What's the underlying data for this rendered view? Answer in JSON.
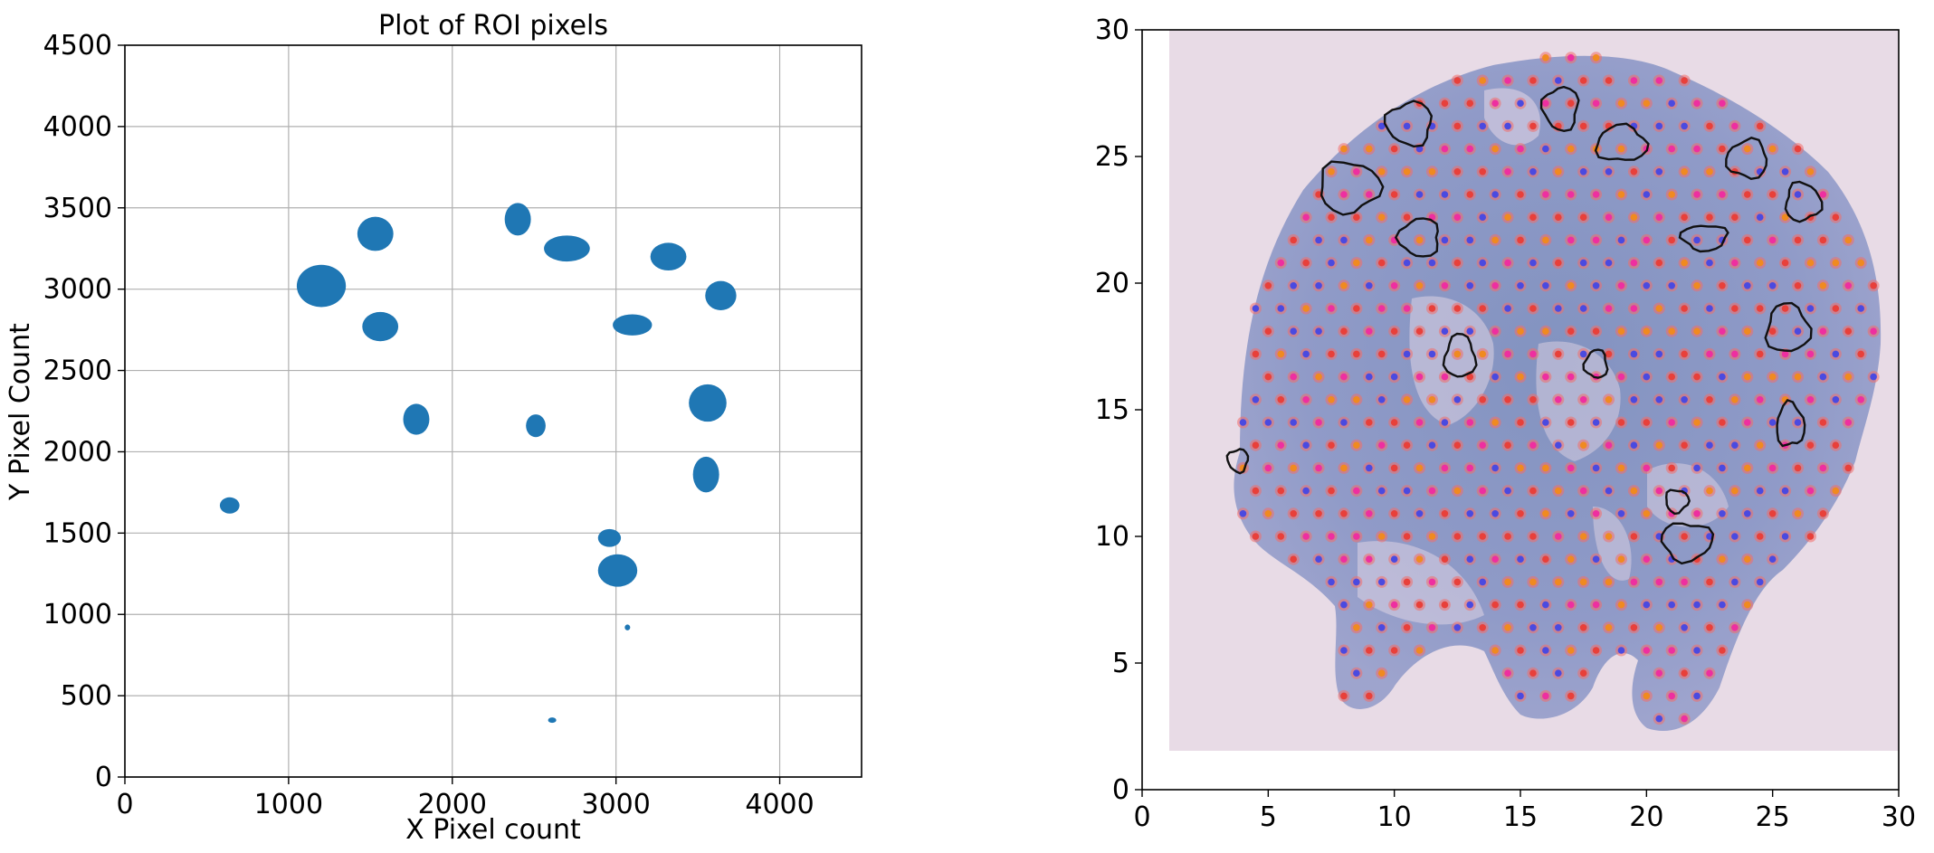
{
  "chart_data": [
    {
      "type": "scatter",
      "title": "Plot of ROI pixels",
      "xlabel": "X Pixel count",
      "ylabel": "Y Pixel Count",
      "xlim": [
        0,
        4500
      ],
      "ylim": [
        0,
        4500
      ],
      "xticks": [
        "0",
        "1000",
        "2000",
        "3000",
        "4000"
      ],
      "yticks": [
        "0",
        "500",
        "1000",
        "1500",
        "2000",
        "2500",
        "3000",
        "3500",
        "4000",
        "4500"
      ],
      "grid": true,
      "marker_color": "#1f77b4",
      "regions": [
        {
          "x": 1200,
          "y": 3020,
          "rx": 150,
          "ry": 130
        },
        {
          "x": 1530,
          "y": 3340,
          "rx": 110,
          "ry": 105
        },
        {
          "x": 1560,
          "y": 2770,
          "rx": 110,
          "ry": 90
        },
        {
          "x": 1780,
          "y": 2200,
          "rx": 80,
          "ry": 95
        },
        {
          "x": 640,
          "y": 1670,
          "rx": 60,
          "ry": 50
        },
        {
          "x": 2400,
          "y": 3430,
          "rx": 80,
          "ry": 100
        },
        {
          "x": 2700,
          "y": 3250,
          "rx": 140,
          "ry": 80
        },
        {
          "x": 2510,
          "y": 2160,
          "rx": 60,
          "ry": 70
        },
        {
          "x": 3100,
          "y": 2780,
          "rx": 120,
          "ry": 65
        },
        {
          "x": 3320,
          "y": 3200,
          "rx": 110,
          "ry": 85
        },
        {
          "x": 3640,
          "y": 2960,
          "rx": 95,
          "ry": 90
        },
        {
          "x": 3560,
          "y": 2300,
          "rx": 115,
          "ry": 115
        },
        {
          "x": 3550,
          "y": 1860,
          "rx": 80,
          "ry": 110
        },
        {
          "x": 2960,
          "y": 1470,
          "rx": 70,
          "ry": 55
        },
        {
          "x": 3010,
          "y": 1270,
          "rx": 120,
          "ry": 100
        },
        {
          "x": 3070,
          "y": 920,
          "rx": 15,
          "ry": 18
        },
        {
          "x": 2610,
          "y": 350,
          "rx": 25,
          "ry": 15
        }
      ]
    },
    {
      "type": "scatter",
      "title": "",
      "xlabel": "",
      "ylabel": "",
      "xlim": [
        0,
        30
      ],
      "ylim": [
        0,
        30
      ],
      "xticks": [
        "0",
        "5",
        "10",
        "15",
        "20",
        "25",
        "30"
      ],
      "yticks": [
        "0",
        "5",
        "10",
        "15",
        "20",
        "25",
        "30"
      ],
      "grid": false,
      "background": "histology tissue section image",
      "spot_colors": [
        "#e8403a",
        "#4a4ae0",
        "#ee2fa0",
        "#f08a20"
      ],
      "roi_outlines": [
        {
          "x": 10.6,
          "y": 26.3,
          "rx": 0.9,
          "ry": 0.85
        },
        {
          "x": 8.2,
          "y": 23.8,
          "rx": 1.2,
          "ry": 1.0
        },
        {
          "x": 16.6,
          "y": 26.9,
          "rx": 0.7,
          "ry": 0.85
        },
        {
          "x": 19.0,
          "y": 25.5,
          "rx": 1.0,
          "ry": 0.7
        },
        {
          "x": 24.0,
          "y": 24.9,
          "rx": 0.8,
          "ry": 0.75
        },
        {
          "x": 26.2,
          "y": 23.2,
          "rx": 0.7,
          "ry": 0.75
        },
        {
          "x": 22.3,
          "y": 21.8,
          "rx": 0.9,
          "ry": 0.5
        },
        {
          "x": 11.0,
          "y": 21.8,
          "rx": 0.8,
          "ry": 0.75
        },
        {
          "x": 12.6,
          "y": 17.1,
          "rx": 0.6,
          "ry": 0.85
        },
        {
          "x": 18.0,
          "y": 16.8,
          "rx": 0.45,
          "ry": 0.55
        },
        {
          "x": 25.6,
          "y": 18.2,
          "rx": 0.85,
          "ry": 0.95
        },
        {
          "x": 25.7,
          "y": 14.4,
          "rx": 0.55,
          "ry": 0.85
        },
        {
          "x": 3.8,
          "y": 13.0,
          "rx": 0.4,
          "ry": 0.45
        },
        {
          "x": 21.2,
          "y": 11.4,
          "rx": 0.45,
          "ry": 0.45
        },
        {
          "x": 21.6,
          "y": 9.8,
          "rx": 1.0,
          "ry": 0.75
        }
      ]
    }
  ]
}
